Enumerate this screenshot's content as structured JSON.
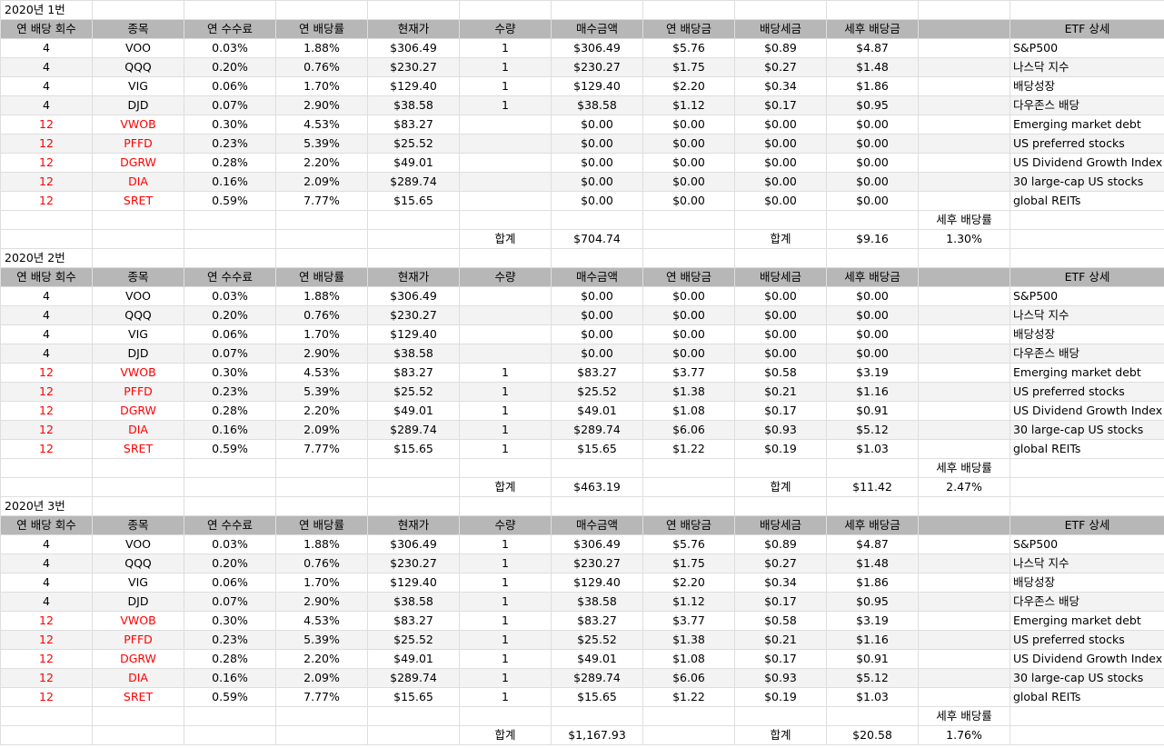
{
  "headers": [
    "연 배당 회수",
    "종목",
    "연 수수료",
    "연 배당률",
    "현재가",
    "수량",
    "매수금액",
    "연 배당금",
    "배당세금",
    "세후 배당금",
    "",
    "ETF 상세"
  ],
  "colors": {
    "header_bg": "#b7b7b7",
    "alt_row_bg": "#f3f3f3",
    "grid": "#dedede",
    "monthly_red": "#ff0000"
  },
  "sections": [
    {
      "title": "2020년 1번",
      "rows": [
        [
          "4",
          "VOO",
          "0.03%",
          "1.88%",
          "$306.49",
          "1",
          "$306.49",
          "$5.76",
          "$0.89",
          "$4.87",
          "",
          "S&P500"
        ],
        [
          "4",
          "QQQ",
          "0.20%",
          "0.76%",
          "$230.27",
          "1",
          "$230.27",
          "$1.75",
          "$0.27",
          "$1.48",
          "",
          "나스닥 지수"
        ],
        [
          "4",
          "VIG",
          "0.06%",
          "1.70%",
          "$129.40",
          "1",
          "$129.40",
          "$2.20",
          "$0.34",
          "$1.86",
          "",
          "배당성장"
        ],
        [
          "4",
          "DJD",
          "0.07%",
          "2.90%",
          "$38.58",
          "1",
          "$38.58",
          "$1.12",
          "$0.17",
          "$0.95",
          "",
          "다우존스 배당"
        ],
        [
          "12",
          "VWOB",
          "0.30%",
          "4.53%",
          "$83.27",
          "",
          "$0.00",
          "$0.00",
          "$0.00",
          "$0.00",
          "",
          "Emerging market debt"
        ],
        [
          "12",
          "PFFD",
          "0.23%",
          "5.39%",
          "$25.52",
          "",
          "$0.00",
          "$0.00",
          "$0.00",
          "$0.00",
          "",
          "US preferred stocks"
        ],
        [
          "12",
          "DGRW",
          "0.28%",
          "2.20%",
          "$49.01",
          "",
          "$0.00",
          "$0.00",
          "$0.00",
          "$0.00",
          "",
          "US Dividend Growth Index"
        ],
        [
          "12",
          "DIA",
          "0.16%",
          "2.09%",
          "$289.74",
          "",
          "$0.00",
          "$0.00",
          "$0.00",
          "$0.00",
          "",
          "30 large-cap US stocks"
        ],
        [
          "12",
          "SRET",
          "0.59%",
          "7.77%",
          "$15.65",
          "",
          "$0.00",
          "$0.00",
          "$0.00",
          "$0.00",
          "",
          "global REITs"
        ]
      ],
      "yield_label": "세후 배당률",
      "total_label": "합계",
      "total_purchase": "$704.74",
      "total_after_tax": "$9.16",
      "yield": "1.30%"
    },
    {
      "title": "2020년 2번",
      "rows": [
        [
          "4",
          "VOO",
          "0.03%",
          "1.88%",
          "$306.49",
          "",
          "$0.00",
          "$0.00",
          "$0.00",
          "$0.00",
          "",
          "S&P500"
        ],
        [
          "4",
          "QQQ",
          "0.20%",
          "0.76%",
          "$230.27",
          "",
          "$0.00",
          "$0.00",
          "$0.00",
          "$0.00",
          "",
          "나스닥 지수"
        ],
        [
          "4",
          "VIG",
          "0.06%",
          "1.70%",
          "$129.40",
          "",
          "$0.00",
          "$0.00",
          "$0.00",
          "$0.00",
          "",
          "배당성장"
        ],
        [
          "4",
          "DJD",
          "0.07%",
          "2.90%",
          "$38.58",
          "",
          "$0.00",
          "$0.00",
          "$0.00",
          "$0.00",
          "",
          "다우존스 배당"
        ],
        [
          "12",
          "VWOB",
          "0.30%",
          "4.53%",
          "$83.27",
          "1",
          "$83.27",
          "$3.77",
          "$0.58",
          "$3.19",
          "",
          "Emerging market debt"
        ],
        [
          "12",
          "PFFD",
          "0.23%",
          "5.39%",
          "$25.52",
          "1",
          "$25.52",
          "$1.38",
          "$0.21",
          "$1.16",
          "",
          "US preferred stocks"
        ],
        [
          "12",
          "DGRW",
          "0.28%",
          "2.20%",
          "$49.01",
          "1",
          "$49.01",
          "$1.08",
          "$0.17",
          "$0.91",
          "",
          "US Dividend Growth Index"
        ],
        [
          "12",
          "DIA",
          "0.16%",
          "2.09%",
          "$289.74",
          "1",
          "$289.74",
          "$6.06",
          "$0.93",
          "$5.12",
          "",
          "30 large-cap US stocks"
        ],
        [
          "12",
          "SRET",
          "0.59%",
          "7.77%",
          "$15.65",
          "1",
          "$15.65",
          "$1.22",
          "$0.19",
          "$1.03",
          "",
          "global REITs"
        ]
      ],
      "yield_label": "세후 배당률",
      "total_label": "합계",
      "total_purchase": "$463.19",
      "total_after_tax": "$11.42",
      "yield": "2.47%"
    },
    {
      "title": "2020년 3번",
      "rows": [
        [
          "4",
          "VOO",
          "0.03%",
          "1.88%",
          "$306.49",
          "1",
          "$306.49",
          "$5.76",
          "$0.89",
          "$4.87",
          "",
          "S&P500"
        ],
        [
          "4",
          "QQQ",
          "0.20%",
          "0.76%",
          "$230.27",
          "1",
          "$230.27",
          "$1.75",
          "$0.27",
          "$1.48",
          "",
          "나스닥 지수"
        ],
        [
          "4",
          "VIG",
          "0.06%",
          "1.70%",
          "$129.40",
          "1",
          "$129.40",
          "$2.20",
          "$0.34",
          "$1.86",
          "",
          "배당성장"
        ],
        [
          "4",
          "DJD",
          "0.07%",
          "2.90%",
          "$38.58",
          "1",
          "$38.58",
          "$1.12",
          "$0.17",
          "$0.95",
          "",
          "다우존스 배당"
        ],
        [
          "12",
          "VWOB",
          "0.30%",
          "4.53%",
          "$83.27",
          "1",
          "$83.27",
          "$3.77",
          "$0.58",
          "$3.19",
          "",
          "Emerging market debt"
        ],
        [
          "12",
          "PFFD",
          "0.23%",
          "5.39%",
          "$25.52",
          "1",
          "$25.52",
          "$1.38",
          "$0.21",
          "$1.16",
          "",
          "US preferred stocks"
        ],
        [
          "12",
          "DGRW",
          "0.28%",
          "2.20%",
          "$49.01",
          "1",
          "$49.01",
          "$1.08",
          "$0.17",
          "$0.91",
          "",
          "US Dividend Growth Index"
        ],
        [
          "12",
          "DIA",
          "0.16%",
          "2.09%",
          "$289.74",
          "1",
          "$289.74",
          "$6.06",
          "$0.93",
          "$5.12",
          "",
          "30 large-cap US stocks"
        ],
        [
          "12",
          "SRET",
          "0.59%",
          "7.77%",
          "$15.65",
          "1",
          "$15.65",
          "$1.22",
          "$0.19",
          "$1.03",
          "",
          "global REITs"
        ]
      ],
      "yield_label": "세후 배당률",
      "total_label": "합계",
      "total_purchase": "$1,167.93",
      "total_after_tax": "$20.58",
      "yield": "1.76%"
    }
  ]
}
